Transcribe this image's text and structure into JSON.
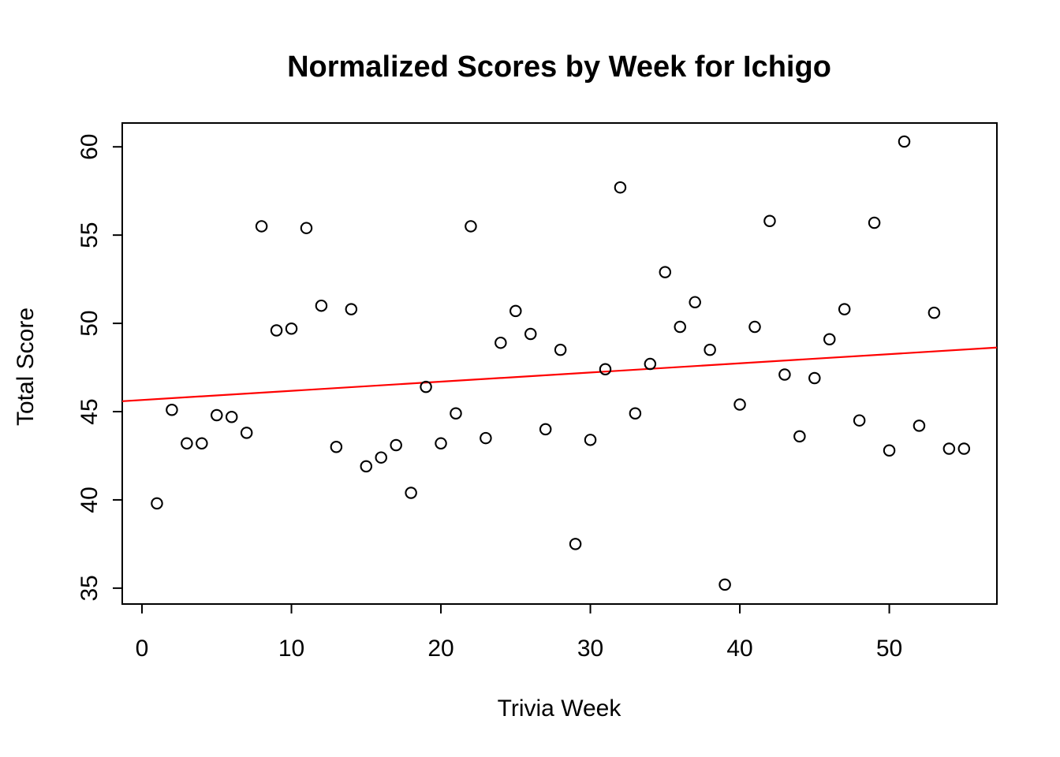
{
  "chart_data": {
    "type": "scatter",
    "title": "Normalized Scores by Week for Ichigo",
    "xlabel": "Trivia Week",
    "ylabel": "Total Score",
    "x": [
      1,
      2,
      3,
      4,
      5,
      6,
      7,
      8,
      9,
      10,
      11,
      12,
      13,
      14,
      15,
      16,
      17,
      18,
      19,
      20,
      21,
      22,
      23,
      24,
      25,
      26,
      27,
      28,
      29,
      30,
      31,
      32,
      33,
      34,
      35,
      36,
      37,
      38,
      39,
      40,
      41,
      42,
      43,
      44,
      45,
      46,
      47,
      48,
      49,
      50,
      51,
      52,
      53,
      54,
      55
    ],
    "y": [
      39.8,
      45.1,
      43.2,
      43.2,
      44.8,
      44.7,
      43.8,
      55.5,
      49.6,
      49.7,
      55.4,
      51.0,
      43.0,
      50.8,
      41.9,
      42.4,
      43.1,
      40.4,
      46.4,
      43.2,
      44.9,
      55.5,
      43.5,
      48.9,
      50.7,
      49.4,
      44.0,
      48.5,
      37.5,
      43.4,
      47.4,
      57.7,
      44.9,
      47.7,
      52.9,
      49.8,
      51.2,
      48.5,
      35.2,
      45.4,
      49.8,
      55.8,
      47.1,
      43.6,
      46.9,
      49.1,
      50.8,
      44.5,
      55.7,
      42.8,
      60.3,
      44.2,
      50.6,
      42.9,
      42.9
    ],
    "xticks": [
      0,
      10,
      20,
      30,
      40,
      50
    ],
    "yticks": [
      35,
      40,
      45,
      50,
      55,
      60
    ],
    "xlim": [
      -1.32,
      57.2
    ],
    "ylim": [
      34.1,
      61.35
    ],
    "trend_line": {
      "x1": -1.32,
      "y1": 45.59,
      "x2": 57.2,
      "y2": 48.63
    },
    "marker": "open-circle",
    "point_color": "#000000",
    "trend_color": "#FF0000",
    "background_color": "#FFFFFF",
    "grid": "off",
    "legend": "none"
  }
}
